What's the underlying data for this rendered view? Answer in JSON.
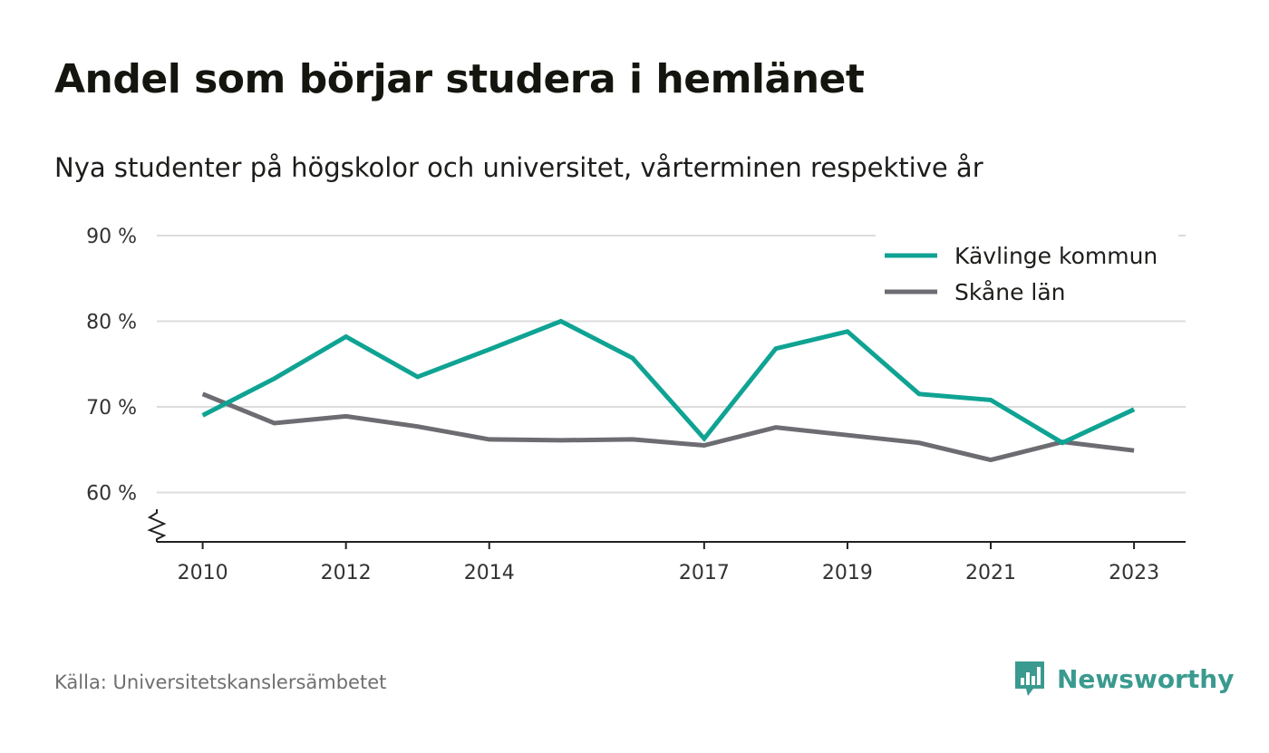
{
  "title": "Andel som börjar studera i hemlänet",
  "subtitle": "Nya studenter på högskolor och universitet, vårterminen respektive år",
  "source": "Källa: Universitetskanslersämbetet",
  "brand": {
    "name": "Newsworthy",
    "icon": "newsworthy-logo-icon",
    "color": "#3a9a8f"
  },
  "chart_data": {
    "type": "line",
    "title": "Andel som börjar studera i hemlänet",
    "subtitle": "Nya studenter på högskolor och universitet, vårterminen respektive år",
    "x": [
      2010,
      2011,
      2012,
      2013,
      2014,
      2015,
      2016,
      2017,
      2018,
      2019,
      2020,
      2021,
      2022,
      2023
    ],
    "x_ticks": [
      "2010",
      "2012",
      "2014",
      "2017",
      "2019",
      "2021",
      "2023"
    ],
    "y_ticks": [
      "60 %",
      "70 %",
      "80 %",
      "90 %"
    ],
    "ylim": [
      55,
      90
    ],
    "y_axis_break": true,
    "grid": true,
    "legend_position": "top-right",
    "series": [
      {
        "name": "Kävlinge kommun",
        "color": "#0fa393",
        "values": [
          69.0,
          73.3,
          78.2,
          73.5,
          76.7,
          80.0,
          75.7,
          66.3,
          76.8,
          78.8,
          71.5,
          70.8,
          65.8,
          69.7
        ]
      },
      {
        "name": "Skåne län",
        "color": "#6c6c72",
        "values": [
          71.5,
          68.1,
          68.9,
          67.7,
          66.2,
          66.1,
          66.2,
          65.5,
          67.6,
          66.7,
          65.8,
          63.8,
          65.9,
          64.9
        ]
      }
    ]
  }
}
